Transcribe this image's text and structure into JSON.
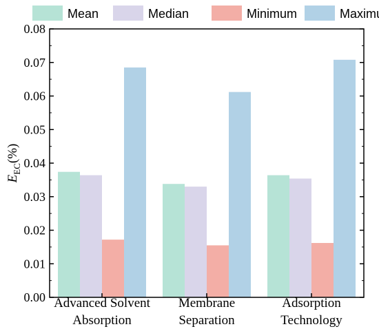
{
  "chart_data": {
    "type": "bar",
    "categories": [
      [
        "Advanced Solvent",
        "Absorption"
      ],
      [
        "Membrane",
        "Separation"
      ],
      [
        "Adsorption",
        "Technology"
      ]
    ],
    "series": [
      {
        "name": "Mean",
        "color": "#b6e3d6",
        "values": [
          0.0374,
          0.0338,
          0.0364
        ]
      },
      {
        "name": "Median",
        "color": "#d9d5ea",
        "values": [
          0.0364,
          0.033,
          0.0354
        ]
      },
      {
        "name": "Minimum",
        "color": "#f3aea6",
        "values": [
          0.0172,
          0.0155,
          0.0162
        ]
      },
      {
        "name": "Maximum",
        "color": "#b1d1e6",
        "values": [
          0.0685,
          0.0612,
          0.0708
        ]
      }
    ],
    "ylim": [
      0,
      0.08
    ],
    "yticks": [
      "0.00",
      "0.01",
      "0.02",
      "0.03",
      "0.04",
      "0.05",
      "0.06",
      "0.07",
      "0.08"
    ],
    "ylabel": {
      "main": "E",
      "sub": "EC",
      "rest": "(%)"
    },
    "legend_position": "top",
    "grid": false
  }
}
